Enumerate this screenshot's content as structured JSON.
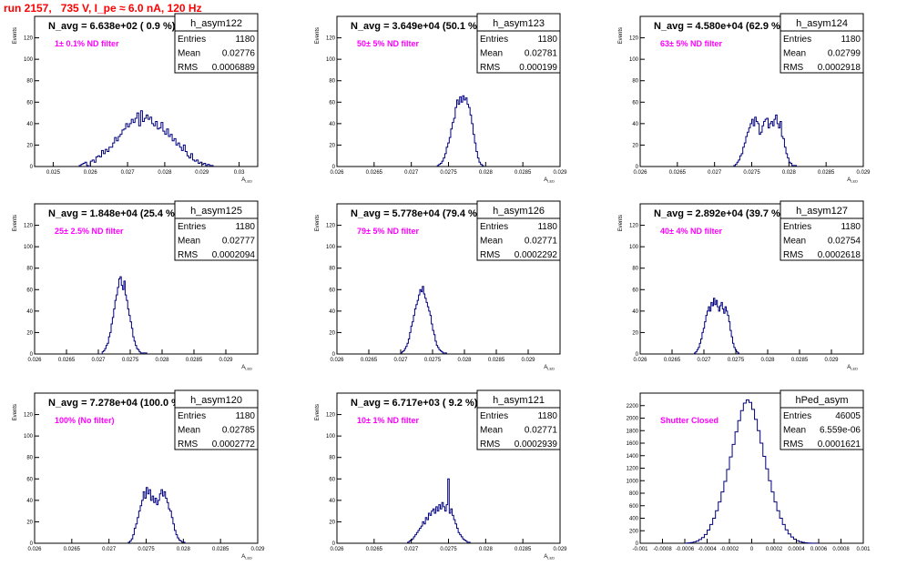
{
  "page_title": "run 2157,   735 V, I_pe ≈ 6.0 nA, 120 Hz",
  "colors": {
    "hist": "#00007f",
    "annotation": "#ff00ff",
    "title": "#ff0000"
  },
  "chart_data": [
    {
      "type": "bar",
      "name": "h_asym122",
      "title": "N_avg = 6.638e+02 ( 0.9 %)",
      "annotation": "1± 0.1% ND filter",
      "ylabel": "Events",
      "xlabel": "A_LED",
      "xlim": [
        0.0245,
        0.0305
      ],
      "ylim": [
        0,
        140
      ],
      "xticks": [
        0.025,
        0.026,
        0.027,
        0.028,
        0.029,
        0.03
      ],
      "xtick_labels": [
        "0.025",
        "0.026",
        "0.027",
        "0.028",
        "0.029",
        "0.03"
      ],
      "yticks": [
        0,
        20,
        40,
        60,
        80,
        100,
        120
      ],
      "stats": [
        [
          "Entries",
          "1180"
        ],
        [
          "Mean",
          "0.02776"
        ],
        [
          "RMS",
          "0.0006889"
        ]
      ],
      "bins": {
        "start": 0.0257,
        "width": 5e-05,
        "values": [
          1,
          2,
          3,
          4,
          1,
          0,
          5,
          6,
          4,
          9,
          10,
          9,
          15,
          12,
          16,
          14,
          18,
          18,
          22,
          27,
          24,
          28,
          30,
          34,
          35,
          40,
          37,
          40,
          44,
          41,
          45,
          50,
          38,
          52,
          42,
          45,
          48,
          44,
          46,
          40,
          38,
          42,
          35,
          36,
          41,
          33,
          30,
          35,
          28,
          30,
          24,
          26,
          20,
          22,
          18,
          15,
          20,
          14,
          10,
          8,
          12,
          6,
          5,
          6,
          3,
          4,
          2,
          3,
          1,
          2,
          1,
          1
        ]
      }
    },
    {
      "type": "bar",
      "name": "h_asym123",
      "title": "N_avg = 3.649e+04 (50.1 %)",
      "annotation": "50± 5% ND filter",
      "ylabel": "Events",
      "xlabel": "A_LED",
      "xlim": [
        0.026,
        0.029
      ],
      "ylim": [
        0,
        140
      ],
      "xticks": [
        0.026,
        0.0265,
        0.027,
        0.0275,
        0.028,
        0.0285,
        0.029
      ],
      "xtick_labels": [
        "0.026",
        "0.0265",
        "0.027",
        "0.0275",
        "0.028",
        "0.0285",
        "0.029"
      ],
      "yticks": [
        0,
        20,
        40,
        60,
        80,
        100,
        120
      ],
      "stats": [
        [
          "Entries",
          "1180"
        ],
        [
          "Mean",
          "0.02781"
        ],
        [
          "RMS",
          "0.000199"
        ]
      ],
      "bins": {
        "start": 0.02735,
        "width": 2e-05,
        "values": [
          1,
          2,
          3,
          5,
          8,
          12,
          18,
          22,
          27,
          35,
          41,
          45,
          55,
          62,
          58,
          65,
          60,
          66,
          62,
          64,
          58,
          55,
          48,
          40,
          30,
          22,
          14,
          8,
          4,
          2,
          1
        ]
      }
    },
    {
      "type": "bar",
      "name": "h_asym124",
      "title": "N_avg = 4.580e+04 (62.9 %)",
      "annotation": "63± 5% ND filter",
      "ylabel": "Events",
      "xlabel": "A_LED",
      "xlim": [
        0.026,
        0.029
      ],
      "ylim": [
        0,
        140
      ],
      "xticks": [
        0.026,
        0.0265,
        0.027,
        0.0275,
        0.028,
        0.0285,
        0.029
      ],
      "xtick_labels": [
        "0.026",
        "0.0265",
        "0.027",
        "0.0275",
        "0.028",
        "0.0285",
        "0.029"
      ],
      "yticks": [
        0,
        20,
        40,
        60,
        80,
        100,
        120
      ],
      "stats": [
        [
          "Entries",
          "1180"
        ],
        [
          "Mean",
          "0.02799"
        ],
        [
          "RMS",
          "0.0002918"
        ]
      ],
      "bins": {
        "start": 0.02726,
        "width": 2e-05,
        "values": [
          1,
          2,
          4,
          6,
          10,
          12,
          18,
          22,
          28,
          32,
          36,
          40,
          44,
          38,
          46,
          42,
          40,
          30,
          32,
          38,
          42,
          44,
          45,
          36,
          40,
          42,
          38,
          44,
          48,
          40,
          36,
          42,
          28,
          26,
          18,
          12,
          8,
          4,
          3,
          1,
          1,
          1
        ]
      }
    },
    {
      "type": "bar",
      "name": "h_asym125",
      "title": "N_avg = 1.848e+04 (25.4 %)",
      "annotation": "25± 2.5% ND filter",
      "ylabel": "Events",
      "xlabel": "A_LED",
      "xlim": [
        0.026,
        0.0295
      ],
      "ylim": [
        0,
        140
      ],
      "xticks": [
        0.026,
        0.0265,
        0.027,
        0.0275,
        0.028,
        0.0285,
        0.029
      ],
      "xtick_labels": [
        "0.026",
        "0.0265",
        "0.027",
        "0.0275",
        "0.028",
        "0.0285",
        "0.029"
      ],
      "yticks": [
        0,
        20,
        40,
        60,
        80,
        100,
        120
      ],
      "stats": [
        [
          "Entries",
          "1180"
        ],
        [
          "Mean",
          "0.02777"
        ],
        [
          "RMS",
          "0.0002094"
        ]
      ],
      "bins": {
        "start": 0.02706,
        "width": 2e-05,
        "values": [
          2,
          3,
          5,
          8,
          10,
          16,
          20,
          28,
          34,
          42,
          50,
          55,
          62,
          70,
          72,
          64,
          60,
          68,
          55,
          50,
          42,
          36,
          30,
          24,
          16,
          12,
          8,
          5,
          4,
          2,
          1,
          1,
          1,
          1,
          1
        ]
      }
    },
    {
      "type": "bar",
      "name": "h_asym126",
      "title": "N_avg = 5.778e+04 (79.4 %)",
      "annotation": "79± 5% ND filter",
      "ylabel": "Events",
      "xlabel": "A_LED",
      "xlim": [
        0.026,
        0.0295
      ],
      "ylim": [
        0,
        140
      ],
      "xticks": [
        0.026,
        0.0265,
        0.027,
        0.0275,
        0.028,
        0.0285,
        0.029
      ],
      "xtick_labels": [
        "0.026",
        "0.0265",
        "0.027",
        "0.0275",
        "0.028",
        "0.0285",
        "0.029"
      ],
      "yticks": [
        0,
        20,
        40,
        60,
        80,
        100,
        120
      ],
      "stats": [
        [
          "Entries",
          "1180"
        ],
        [
          "Mean",
          "0.02771"
        ],
        [
          "RMS",
          "0.0002292"
        ]
      ],
      "bins": {
        "start": 0.027,
        "width": 2e-05,
        "values": [
          1,
          2,
          3,
          5,
          7,
          10,
          14,
          20,
          26,
          30,
          36,
          42,
          46,
          50,
          55,
          60,
          58,
          63,
          56,
          52,
          48,
          44,
          40,
          36,
          28,
          22,
          18,
          12,
          8,
          6,
          4,
          3,
          2,
          1,
          1,
          1
        ]
      }
    },
    {
      "type": "bar",
      "name": "h_asym127",
      "title": "N_avg = 2.892e+04 (39.7 %)",
      "annotation": "40± 4% ND filter",
      "ylabel": "Events",
      "xlabel": "A_LED",
      "xlim": [
        0.026,
        0.0295
      ],
      "ylim": [
        0,
        140
      ],
      "xticks": [
        0.026,
        0.0265,
        0.027,
        0.0275,
        0.028,
        0.0285,
        0.029
      ],
      "xtick_labels": [
        "0.026",
        "0.0265",
        "0.027",
        "0.0275",
        "0.028",
        "0.0285",
        "0.029"
      ],
      "yticks": [
        0,
        20,
        40,
        60,
        80,
        100,
        120
      ],
      "stats": [
        [
          "Entries",
          "1180"
        ],
        [
          "Mean",
          "0.02754"
        ],
        [
          "RMS",
          "0.0002618"
        ]
      ],
      "bins": {
        "start": 0.02685,
        "width": 2e-05,
        "values": [
          1,
          2,
          4,
          6,
          10,
          14,
          20,
          24,
          30,
          36,
          40,
          44,
          40,
          48,
          45,
          52,
          46,
          50,
          44,
          40,
          45,
          48,
          42,
          38,
          44,
          40,
          36,
          30,
          22,
          16,
          10,
          6,
          4,
          2,
          1
        ]
      }
    },
    {
      "type": "bar",
      "name": "h_asym120",
      "title": "N_avg = 7.278e+04 (100.0 %)",
      "annotation": "100% (No filter)",
      "ylabel": "Events",
      "xlabel": "A_LED",
      "xlim": [
        0.026,
        0.029
      ],
      "ylim": [
        0,
        140
      ],
      "xticks": [
        0.026,
        0.0265,
        0.027,
        0.0275,
        0.028,
        0.0285,
        0.029
      ],
      "xtick_labels": [
        "0.026",
        "0.0265",
        "0.027",
        "0.0275",
        "0.028",
        "0.0285",
        "0.029"
      ],
      "yticks": [
        0,
        20,
        40,
        60,
        80,
        100,
        120
      ],
      "stats": [
        [
          "Entries",
          "1180"
        ],
        [
          "Mean",
          "0.02785"
        ],
        [
          "RMS",
          "0.0002772"
        ]
      ],
      "bins": {
        "start": 0.02726,
        "width": 2e-05,
        "values": [
          1,
          2,
          4,
          8,
          14,
          18,
          24,
          30,
          35,
          40,
          48,
          42,
          52,
          46,
          50,
          40,
          44,
          38,
          42,
          36,
          40,
          46,
          50,
          44,
          48,
          42,
          38,
          32,
          30,
          24,
          18,
          12,
          8,
          5,
          3,
          2,
          1,
          1
        ]
      }
    },
    {
      "type": "bar",
      "name": "h_asym121",
      "title": "N_avg = 6.717e+03 ( 9.2 %)",
      "annotation": "10± 1% ND filter",
      "ylabel": "Events",
      "xlabel": "A_LED",
      "xlim": [
        0.026,
        0.029
      ],
      "ylim": [
        0,
        140
      ],
      "xticks": [
        0.026,
        0.0265,
        0.027,
        0.0275,
        0.028,
        0.0285,
        0.029
      ],
      "xtick_labels": [
        "0.026",
        "0.0265",
        "0.027",
        "0.0275",
        "0.028",
        "0.0285",
        "0.029"
      ],
      "yticks": [
        0,
        20,
        40,
        60,
        80,
        100,
        120
      ],
      "stats": [
        [
          "Entries",
          "1180"
        ],
        [
          "Mean",
          "0.02771"
        ],
        [
          "RMS",
          "0.0002939"
        ]
      ],
      "bins": {
        "start": 0.02695,
        "width": 2e-05,
        "values": [
          1,
          2,
          3,
          4,
          6,
          8,
          10,
          12,
          14,
          16,
          20,
          18,
          24,
          22,
          28,
          26,
          30,
          32,
          28,
          34,
          30,
          36,
          32,
          38,
          34,
          30,
          36,
          60,
          28,
          32,
          26,
          22,
          18,
          14,
          10,
          8,
          6,
          4,
          3,
          2,
          1,
          1
        ]
      }
    },
    {
      "type": "bar",
      "name": "hPed_asym",
      "title": "",
      "annotation": "Shutter Closed",
      "ylabel": "",
      "xlabel": "",
      "xlim": [
        -0.001,
        0.001
      ],
      "ylim": [
        0,
        2400
      ],
      "xticks": [
        -0.001,
        -0.0008,
        -0.0006,
        -0.0004,
        -0.0002,
        0,
        0.0002,
        0.0004,
        0.0006,
        0.0008,
        0.001
      ],
      "xtick_labels": [
        "-0.001",
        "-0.0008",
        "-0.0006",
        "-0.0004",
        "-0.0002",
        "0",
        "0.0002",
        "0.0004",
        "0.0006",
        "0.0008",
        "0.001"
      ],
      "yticks": [
        0,
        200,
        400,
        600,
        800,
        1000,
        1200,
        1400,
        1600,
        1800,
        2000,
        2200
      ],
      "stats": [
        [
          "Entries",
          "46005"
        ],
        [
          "Mean",
          "6.559e-06"
        ],
        [
          "RMS",
          "0.0001621"
        ]
      ],
      "bins": {
        "start": -0.0006,
        "width": 2.5e-05,
        "values": [
          2,
          5,
          10,
          20,
          35,
          60,
          90,
          140,
          210,
          300,
          400,
          520,
          660,
          820,
          990,
          1180,
          1380,
          1580,
          1780,
          1960,
          2120,
          2240,
          2290,
          2250,
          2140,
          1980,
          1800,
          1600,
          1390,
          1190,
          1000,
          820,
          660,
          520,
          400,
          300,
          215,
          150,
          100,
          65,
          40,
          25,
          15,
          8,
          4,
          2,
          1,
          1
        ]
      }
    }
  ]
}
